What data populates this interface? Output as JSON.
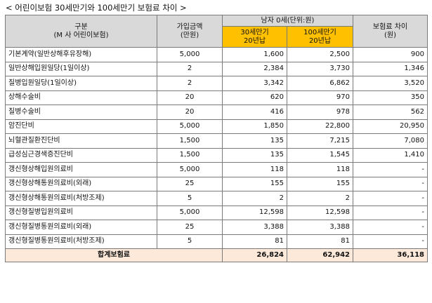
{
  "title": "< 어린이보험 30세만기와 100세만기 보험료 차이 >",
  "headers": {
    "category": "구분",
    "category_sub": "(M 사 어린이보험)",
    "amount": "가입금액",
    "amount_sub": "(만원)",
    "male_group": "남자 0세(단위:원)",
    "col30_line1": "30세만기",
    "col30_line2": "20년납",
    "col100_line1": "100세만기",
    "col100_line2": "20년납",
    "diff": "보험료 차이",
    "diff_sub": "(원)"
  },
  "rows": [
    {
      "name": "기본계약(일반상해후유장해)",
      "amount": "5,000",
      "p30": "1,600",
      "p100": "2,500",
      "diff": "900"
    },
    {
      "name": "일반상해입원일당(1일이상)",
      "amount": "2",
      "p30": "2,384",
      "p100": "3,730",
      "diff": "1,346"
    },
    {
      "name": "질병입원일당(1일이상)",
      "amount": "2",
      "p30": "3,342",
      "p100": "6,862",
      "diff": "3,520"
    },
    {
      "name": "상해수술비",
      "amount": "20",
      "p30": "620",
      "p100": "970",
      "diff": "350"
    },
    {
      "name": "질병수술비",
      "amount": "20",
      "p30": "416",
      "p100": "978",
      "diff": "562"
    },
    {
      "name": "암진단비",
      "amount": "5,000",
      "p30": "1,850",
      "p100": "22,800",
      "diff": "20,950"
    },
    {
      "name": "뇌혈관질환진단비",
      "amount": "1,500",
      "p30": "135",
      "p100": "7,215",
      "diff": "7,080"
    },
    {
      "name": "급성심근경색증진단비",
      "amount": "1,500",
      "p30": "135",
      "p100": "1,545",
      "diff": "1,410"
    },
    {
      "name": "갱신형상해입원의료비",
      "amount": "5,000",
      "p30": "118",
      "p100": "118",
      "diff": "-"
    },
    {
      "name": "갱신형상해통원의료비(외래)",
      "amount": "25",
      "p30": "155",
      "p100": "155",
      "diff": "-"
    },
    {
      "name": "갱신형상해통원의료비(처방조제)",
      "amount": "5",
      "p30": "2",
      "p100": "2",
      "diff": "-"
    },
    {
      "name": "갱신형질병입원의료비",
      "amount": "5,000",
      "p30": "12,598",
      "p100": "12,598",
      "diff": "-"
    },
    {
      "name": "갱신형질병통원의료비(외래)",
      "amount": "25",
      "p30": "3,388",
      "p100": "3,388",
      "diff": "-"
    },
    {
      "name": "갱신형질병통원의료비(처방조제)",
      "amount": "5",
      "p30": "81",
      "p100": "81",
      "diff": "-"
    }
  ],
  "total": {
    "label": "합계보험료",
    "p30": "26,824",
    "p100": "62,942",
    "diff": "36,118"
  }
}
